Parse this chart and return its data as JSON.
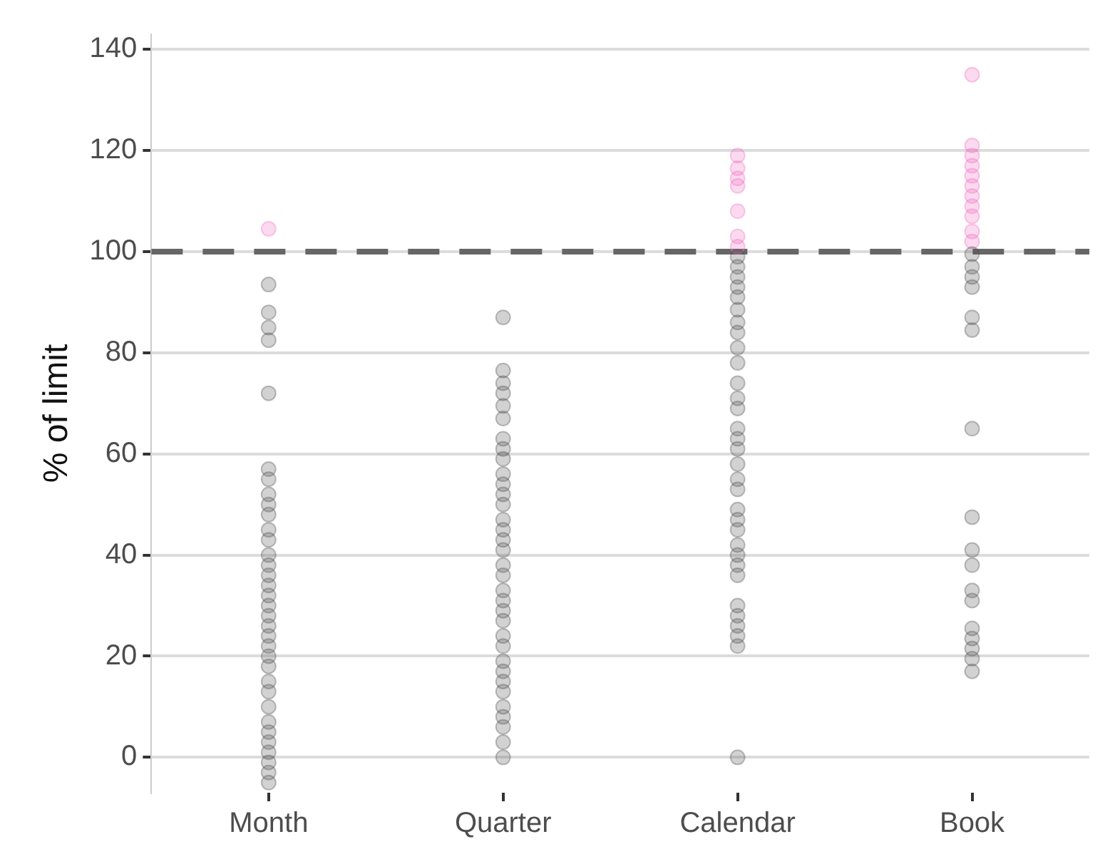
{
  "chart_data": {
    "type": "scatter",
    "ylabel": "% of limit",
    "categories": [
      "Month",
      "Quarter",
      "Calendar",
      "Book"
    ],
    "ylim": [
      -7,
      143
    ],
    "yticks": [
      0,
      20,
      40,
      60,
      80,
      100,
      120,
      140
    ],
    "grid": "y",
    "marker": "circle",
    "ref_lines": [
      {
        "axis": "y",
        "value": 100,
        "color": "#666666",
        "line_style": "dashed"
      }
    ],
    "series": [
      {
        "color": "#4d4d4d",
        "x": [
          "Month",
          "Month",
          "Month",
          "Month",
          "Month",
          "Month",
          "Month",
          "Month",
          "Month",
          "Month",
          "Month",
          "Month",
          "Month",
          "Month",
          "Month",
          "Month",
          "Month",
          "Month",
          "Month",
          "Month",
          "Month",
          "Month",
          "Month",
          "Month",
          "Month",
          "Month",
          "Month",
          "Month",
          "Month",
          "Month",
          "Month",
          "Month",
          "Month",
          "Month"
        ],
        "values": [
          93.5,
          88,
          85,
          82.5,
          72,
          57,
          55,
          52,
          50,
          48,
          45,
          43,
          40,
          38,
          36,
          34,
          32,
          30,
          28,
          26,
          24,
          22,
          20,
          18,
          15,
          13,
          10,
          7,
          5,
          3,
          1,
          -1,
          -3,
          -5
        ]
      },
      {
        "color": "#4d4d4d",
        "x": [
          "Quarter",
          "Quarter",
          "Quarter",
          "Quarter",
          "Quarter",
          "Quarter",
          "Quarter",
          "Quarter",
          "Quarter",
          "Quarter",
          "Quarter",
          "Quarter",
          "Quarter",
          "Quarter",
          "Quarter",
          "Quarter",
          "Quarter",
          "Quarter",
          "Quarter",
          "Quarter",
          "Quarter",
          "Quarter",
          "Quarter",
          "Quarter",
          "Quarter",
          "Quarter",
          "Quarter",
          "Quarter",
          "Quarter",
          "Quarter",
          "Quarter",
          "Quarter",
          "Quarter",
          "Quarter"
        ],
        "values": [
          87,
          76.5,
          74,
          72,
          69.5,
          67,
          63,
          61,
          59,
          56,
          54,
          52,
          50,
          47,
          45,
          43,
          41,
          38,
          36,
          33,
          31,
          29,
          27,
          24,
          22,
          19,
          17,
          15,
          13,
          10,
          8,
          6,
          3,
          0
        ]
      },
      {
        "color": "#4d4d4d",
        "x": [
          "Calendar",
          "Calendar",
          "Calendar",
          "Calendar",
          "Calendar",
          "Calendar",
          "Calendar",
          "Calendar",
          "Calendar",
          "Calendar",
          "Calendar",
          "Calendar",
          "Calendar",
          "Calendar",
          "Calendar",
          "Calendar",
          "Calendar",
          "Calendar",
          "Calendar",
          "Calendar",
          "Calendar",
          "Calendar",
          "Calendar",
          "Calendar",
          "Calendar",
          "Calendar",
          "Calendar",
          "Calendar",
          "Calendar",
          "Calendar",
          "Calendar",
          "Calendar"
        ],
        "values": [
          99,
          97,
          95,
          93,
          91,
          88.5,
          86,
          84,
          81,
          78,
          74,
          71,
          69,
          65,
          63,
          61,
          58,
          55,
          53,
          49,
          47,
          45,
          42,
          40,
          38,
          36,
          30,
          28,
          26,
          24,
          22,
          0
        ]
      },
      {
        "color": "#4d4d4d",
        "x": [
          "Book",
          "Book",
          "Book",
          "Book",
          "Book",
          "Book",
          "Book",
          "Book",
          "Book",
          "Book",
          "Book",
          "Book",
          "Book",
          "Book",
          "Book",
          "Book",
          "Book"
        ],
        "values": [
          99.5,
          97,
          95,
          93,
          87,
          84.5,
          65,
          47.5,
          41,
          38,
          33,
          31,
          25.5,
          23.5,
          21.5,
          19.5,
          17
        ]
      },
      {
        "color": "#f06cc0",
        "x": [
          "Month"
        ],
        "values": [
          104.5
        ]
      },
      {
        "color": "#f06cc0",
        "x": [
          "Calendar",
          "Calendar",
          "Calendar",
          "Calendar",
          "Calendar",
          "Calendar",
          "Calendar"
        ],
        "values": [
          119,
          116.5,
          114.5,
          113,
          108,
          103,
          101
        ]
      },
      {
        "color": "#f06cc0",
        "x": [
          "Book",
          "Book",
          "Book",
          "Book",
          "Book",
          "Book",
          "Book",
          "Book",
          "Book",
          "Book",
          "Book"
        ],
        "values": [
          135,
          121,
          119,
          117,
          115,
          113,
          111,
          109,
          107,
          104,
          102
        ]
      }
    ]
  }
}
